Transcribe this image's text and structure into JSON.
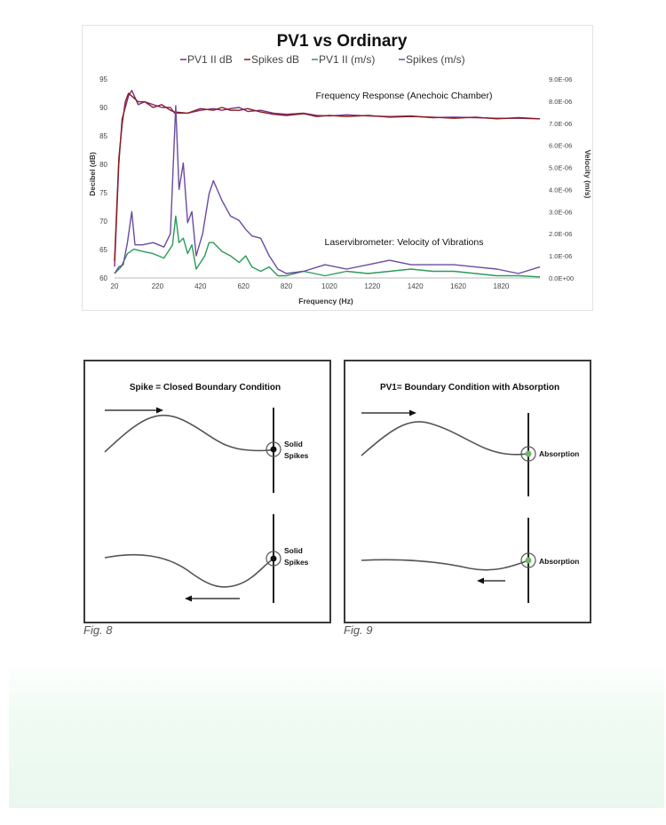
{
  "chart_data": {
    "type": "line",
    "title": "PV1 vs Ordinary",
    "legend": [
      {
        "label": "PV1 II dB",
        "color": "#7a2e84"
      },
      {
        "label": "Spikes dB",
        "color": "#8a1c1c"
      },
      {
        "label": "PV1 II (m/s)",
        "color": "#2b9a5a"
      },
      {
        "label": "Spikes (m/s)",
        "color": "#6b4aa0"
      }
    ],
    "xlabel": "Frequency (Hz)",
    "ylabel_left": "Decibel (dB)",
    "ylabel_right": "Velocity (m/s)",
    "xlim": [
      20,
      2000
    ],
    "ylim_left": [
      60,
      95
    ],
    "ylim_right": [
      0,
      9e-06
    ],
    "x_ticks": [
      "20",
      "220",
      "420",
      "620",
      "820",
      "1020",
      "1220",
      "1420",
      "1620",
      "1820"
    ],
    "y_left_ticks": [
      "60",
      "65",
      "70",
      "75",
      "80",
      "85",
      "90",
      "95"
    ],
    "y_right_ticks": [
      "0.0E+00",
      "1.0E-06",
      "2.0E-06",
      "3.0E-06",
      "4.0E-06",
      "5.0E-06",
      "6.0E-06",
      "7.0E-06",
      "8.0E-06",
      "9.0E-06"
    ],
    "annotations": [
      "Frequency Response (Anechoic Chamber)",
      "Laservibrometer: Velocity of Vibrations"
    ],
    "series": [
      {
        "name": "PV1 II dB",
        "axis": "left",
        "color": "#7a2e84",
        "points": [
          [
            20,
            62
          ],
          [
            40,
            80
          ],
          [
            55,
            88
          ],
          [
            70,
            90
          ],
          [
            85,
            92
          ],
          [
            100,
            93
          ],
          [
            130,
            90.5
          ],
          [
            160,
            91
          ],
          [
            200,
            90.5
          ],
          [
            240,
            90
          ],
          [
            280,
            90
          ],
          [
            300,
            89
          ],
          [
            360,
            89
          ],
          [
            420,
            89.5
          ],
          [
            480,
            89.8
          ],
          [
            520,
            89.5
          ],
          [
            560,
            89.8
          ],
          [
            600,
            90
          ],
          [
            640,
            89.3
          ],
          [
            700,
            89.5
          ],
          [
            760,
            89
          ],
          [
            820,
            88.8
          ],
          [
            900,
            89
          ],
          [
            960,
            88.6
          ],
          [
            1020,
            88.5
          ],
          [
            1100,
            88.7
          ],
          [
            1200,
            88.5
          ],
          [
            1300,
            88.4
          ],
          [
            1400,
            88.5
          ],
          [
            1500,
            88.2
          ],
          [
            1600,
            88.3
          ],
          [
            1700,
            88.2
          ],
          [
            1800,
            88.1
          ],
          [
            1900,
            88.1
          ],
          [
            2000,
            88
          ]
        ]
      },
      {
        "name": "Spikes dB",
        "axis": "left",
        "color": "#8a1c1c",
        "points": [
          [
            20,
            63
          ],
          [
            40,
            81
          ],
          [
            55,
            87
          ],
          [
            70,
            91
          ],
          [
            85,
            92.5
          ],
          [
            100,
            92
          ],
          [
            130,
            91
          ],
          [
            160,
            91
          ],
          [
            200,
            90
          ],
          [
            240,
            90.5
          ],
          [
            280,
            89.5
          ],
          [
            300,
            89.2
          ],
          [
            360,
            89
          ],
          [
            420,
            89.8
          ],
          [
            480,
            89.5
          ],
          [
            520,
            90
          ],
          [
            560,
            89.5
          ],
          [
            600,
            89.5
          ],
          [
            640,
            89.8
          ],
          [
            700,
            89.2
          ],
          [
            760,
            88.8
          ],
          [
            820,
            88.6
          ],
          [
            900,
            88.9
          ],
          [
            960,
            88.4
          ],
          [
            1020,
            88.6
          ],
          [
            1100,
            88.4
          ],
          [
            1200,
            88.6
          ],
          [
            1300,
            88.3
          ],
          [
            1400,
            88.4
          ],
          [
            1500,
            88.3
          ],
          [
            1600,
            88.1
          ],
          [
            1700,
            88.3
          ],
          [
            1800,
            88
          ],
          [
            1900,
            88.2
          ],
          [
            2000,
            88
          ]
        ]
      },
      {
        "name": "PV1 II (m/s)",
        "axis": "right",
        "color": "#2b9a5a",
        "points": [
          [
            20,
            2e-07
          ],
          [
            50,
            5e-07
          ],
          [
            80,
            1.1e-06
          ],
          [
            110,
            1.3e-06
          ],
          [
            150,
            1.2e-06
          ],
          [
            200,
            1.1e-06
          ],
          [
            250,
            9e-07
          ],
          [
            290,
            1.5e-06
          ],
          [
            305,
            2.8e-06
          ],
          [
            320,
            1.6e-06
          ],
          [
            340,
            1.8e-06
          ],
          [
            360,
            1.1e-06
          ],
          [
            380,
            1.5e-06
          ],
          [
            400,
            4e-07
          ],
          [
            420,
            7e-07
          ],
          [
            440,
            1e-06
          ],
          [
            460,
            1.6e-06
          ],
          [
            480,
            1.6e-06
          ],
          [
            520,
            1.2e-06
          ],
          [
            560,
            1e-06
          ],
          [
            600,
            7e-07
          ],
          [
            630,
            1e-06
          ],
          [
            660,
            5e-07
          ],
          [
            700,
            3e-07
          ],
          [
            740,
            5e-07
          ],
          [
            780,
            1e-07
          ],
          [
            820,
            1e-07
          ],
          [
            900,
            3e-07
          ],
          [
            1000,
            1e-07
          ],
          [
            1100,
            3e-07
          ],
          [
            1200,
            2e-07
          ],
          [
            1300,
            3e-07
          ],
          [
            1400,
            4e-07
          ],
          [
            1500,
            3e-07
          ],
          [
            1600,
            3e-07
          ],
          [
            1700,
            2e-07
          ],
          [
            1800,
            1e-07
          ],
          [
            1900,
            1e-07
          ],
          [
            2000,
            5e-08
          ]
        ]
      },
      {
        "name": "Spikes (m/s)",
        "axis": "right",
        "color": "#6b4aa0",
        "points": [
          [
            20,
            2e-07
          ],
          [
            40,
            5e-07
          ],
          [
            60,
            6e-07
          ],
          [
            80,
            1.6e-06
          ],
          [
            100,
            3e-06
          ],
          [
            115,
            1.5e-06
          ],
          [
            150,
            1.5e-06
          ],
          [
            200,
            1.6e-06
          ],
          [
            250,
            1.4e-06
          ],
          [
            280,
            2e-06
          ],
          [
            305,
            7.8e-06
          ],
          [
            320,
            4e-06
          ],
          [
            340,
            5.2e-06
          ],
          [
            360,
            2.5e-06
          ],
          [
            380,
            3e-06
          ],
          [
            400,
            1e-06
          ],
          [
            430,
            2e-06
          ],
          [
            460,
            3.8e-06
          ],
          [
            480,
            4.4e-06
          ],
          [
            520,
            3.5e-06
          ],
          [
            560,
            2.8e-06
          ],
          [
            600,
            2.6e-06
          ],
          [
            630,
            2.2e-06
          ],
          [
            660,
            1.9e-06
          ],
          [
            700,
            1.8e-06
          ],
          [
            740,
            1e-06
          ],
          [
            780,
            4e-07
          ],
          [
            820,
            2e-07
          ],
          [
            900,
            3e-07
          ],
          [
            1000,
            6e-07
          ],
          [
            1100,
            4e-07
          ],
          [
            1200,
            6e-07
          ],
          [
            1300,
            8e-07
          ],
          [
            1400,
            6e-07
          ],
          [
            1500,
            6e-07
          ],
          [
            1600,
            6e-07
          ],
          [
            1700,
            5e-07
          ],
          [
            1800,
            4e-07
          ],
          [
            1900,
            2e-07
          ],
          [
            2000,
            5e-07
          ]
        ]
      }
    ]
  },
  "fig8": {
    "title": "Spike = Closed Boundary Condition",
    "label_top_1": "Solid",
    "label_top_2": "Spikes",
    "label_bottom_1": "Solid",
    "label_bottom_2": "Spikes",
    "caption": "Fig. 8"
  },
  "fig9": {
    "title": "PV1= Boundary Condition with Absorption",
    "label_top": "Absorption",
    "label_bottom": "Absorption",
    "caption": "Fig. 9"
  }
}
